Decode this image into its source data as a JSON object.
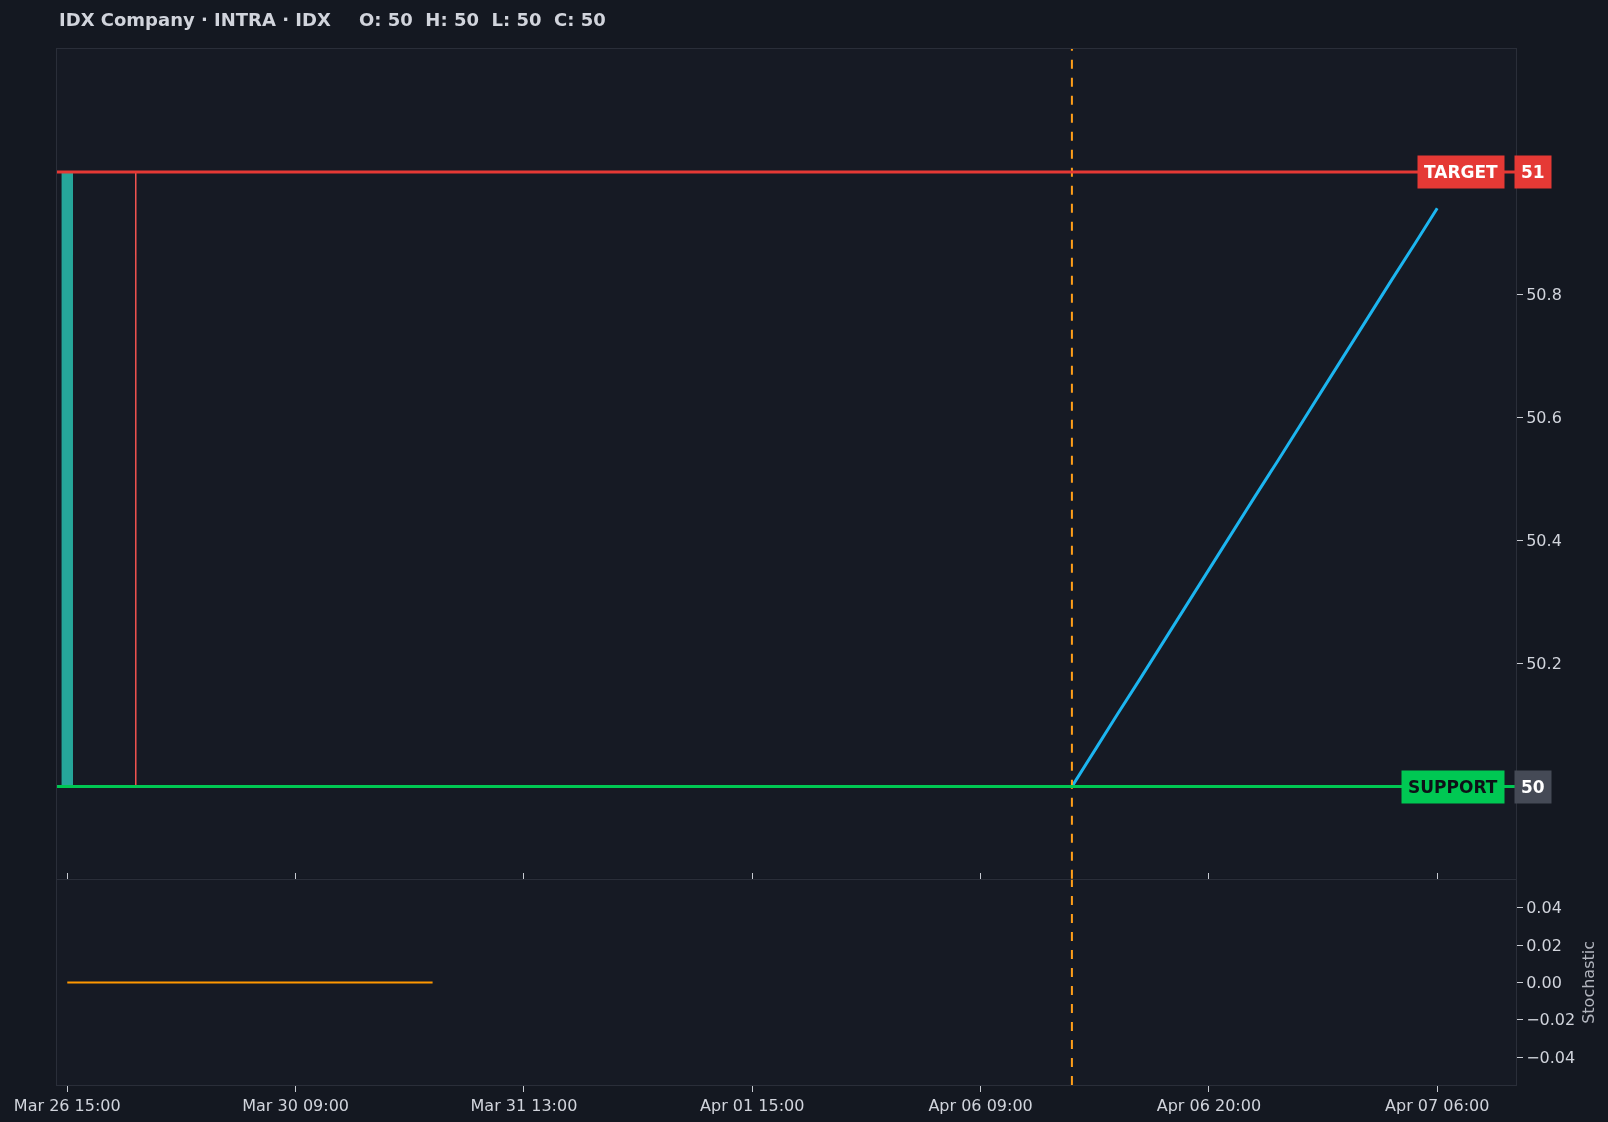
{
  "chart_data": [
    {
      "type": "candlestick",
      "title": "IDX Company · INTRA · IDX",
      "subtitle": "O: 50  H: 50  L: 50  C: 50",
      "categories": [
        null,
        null,
        null,
        null,
        null,
        null,
        null,
        null,
        null,
        null,
        null,
        null,
        null,
        null,
        null,
        null,
        null,
        null,
        null,
        null,
        null,
        null,
        null,
        null,
        null,
        null,
        null,
        null,
        null,
        null,
        null,
        null,
        null,
        null,
        null,
        null,
        null,
        null,
        null,
        null,
        null,
        null,
        null,
        null,
        null,
        null,
        null,
        null,
        null,
        null,
        null,
        null,
        null,
        null,
        null,
        null,
        null,
        null,
        null,
        null,
        null,
        null,
        null,
        null
      ],
      "ohlc": [
        [
          50,
          51,
          50,
          51
        ],
        null,
        null,
        [
          50,
          51,
          50,
          50
        ],
        null,
        null,
        null,
        null,
        null,
        null,
        null,
        null,
        null,
        null,
        null,
        null,
        null,
        null,
        null,
        null,
        null,
        null,
        null,
        null,
        null,
        null,
        null,
        null,
        null,
        null,
        null,
        null,
        null,
        null,
        null,
        null,
        null,
        null,
        null,
        null,
        null,
        null,
        null,
        null,
        null,
        null,
        null,
        null,
        null,
        null,
        null,
        null,
        null,
        null,
        null,
        null,
        null,
        null,
        null,
        null,
        null,
        null,
        null,
        null
      ],
      "colors": [
        "#26a69a",
        null,
        null,
        "#ef5350",
        null,
        null,
        null,
        null,
        null,
        null,
        null,
        null,
        null,
        null,
        null,
        null,
        null,
        null,
        null,
        null,
        null,
        null,
        null,
        null,
        null,
        null,
        null,
        null,
        null,
        null,
        null,
        null,
        null,
        null,
        null,
        null,
        null,
        null,
        null,
        null,
        null,
        null,
        null,
        null,
        null,
        null,
        null,
        null,
        null,
        null,
        null,
        null,
        null,
        null,
        null,
        null,
        null,
        null,
        null,
        null,
        null,
        null,
        null,
        null
      ],
      "series": [
        {
          "type": "line",
          "color": "#1cb5f0",
          "values": [
            null,
            null,
            null,
            null,
            null,
            null,
            null,
            null,
            null,
            null,
            null,
            null,
            null,
            null,
            null,
            null,
            null,
            null,
            null,
            null,
            null,
            null,
            null,
            null,
            null,
            null,
            null,
            null,
            null,
            null,
            null,
            null,
            null,
            null,
            null,
            null,
            null,
            null,
            null,
            null,
            null,
            null,
            null,
            null,
            50,
            50.059,
            50.118,
            50.176,
            50.235,
            50.294,
            50.353,
            50.412,
            50.471,
            50.529,
            50.588,
            50.647,
            50.706,
            50.765,
            50.824,
            50.882,
            50.941,
            null,
            null,
            null
          ]
        }
      ],
      "ylim": [
        49.85,
        51.2
      ],
      "yticks": [
        50.2,
        50.4,
        50.6,
        50.8
      ],
      "ref_lines": [
        {
          "axis": "y",
          "value": 51,
          "label": "TARGET",
          "color": "#e53935"
        },
        {
          "axis": "y",
          "value": 50,
          "label": "SUPPORT",
          "color": "#00c853"
        }
      ],
      "annotations": [
        {
          "text": "51",
          "y": 51
        },
        {
          "text": "50",
          "y": 50
        }
      ]
    },
    {
      "type": "line",
      "categories": [
        "Mar 26 15:00",
        null,
        null,
        null,
        null,
        null,
        null,
        null,
        null,
        null,
        "Mar 30 09:00",
        null,
        null,
        null,
        null,
        null,
        null,
        null,
        null,
        null,
        "Mar 31 13:00",
        null,
        null,
        null,
        null,
        null,
        null,
        null,
        null,
        null,
        "Apr 01 15:00",
        null,
        null,
        null,
        null,
        null,
        null,
        null,
        null,
        null,
        "Apr 06 09:00",
        null,
        null,
        null,
        null,
        null,
        null,
        null,
        null,
        null,
        "Apr 06 20:00",
        null,
        null,
        null,
        null,
        null,
        null,
        null,
        null,
        null,
        "Apr 07 06:00",
        null,
        null,
        null
      ],
      "series": [
        {
          "color": "#ff9800",
          "values": [
            0,
            0,
            0,
            0,
            0,
            0,
            0,
            0,
            0,
            0,
            0,
            0,
            0,
            0,
            0,
            0,
            0,
            null,
            null,
            null,
            null,
            null,
            null,
            null,
            null,
            null,
            null,
            null,
            null,
            null,
            null,
            null,
            null,
            null,
            null,
            null,
            null,
            null,
            null,
            null,
            null,
            null,
            null,
            null,
            null,
            null,
            null,
            null,
            null,
            null,
            null,
            null,
            null,
            null,
            null,
            null,
            null,
            null,
            null,
            null,
            null,
            null,
            null,
            null
          ]
        }
      ],
      "ylim": [
        -0.055,
        0.055
      ],
      "yticks": [
        {
          "value": -0.04,
          "label": "−0.04"
        },
        {
          "value": -0.02,
          "label": "−0.02"
        },
        {
          "value": 0,
          "label": "0.00"
        },
        {
          "value": 0.02,
          "label": "0.02"
        },
        {
          "value": 0.04,
          "label": "0.04"
        }
      ],
      "ylabel": "Stochastic"
    }
  ]
}
